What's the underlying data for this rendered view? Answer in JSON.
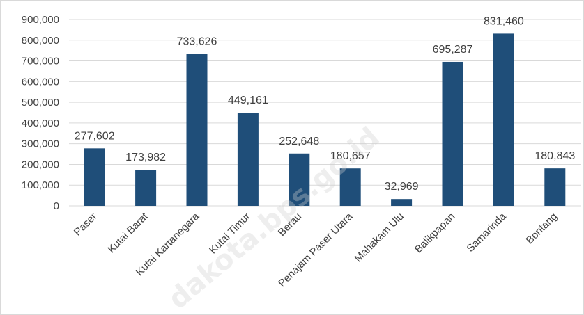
{
  "chart_data": {
    "type": "bar",
    "categories": [
      "Paser",
      "Kutai Barat",
      "Kutai Kartanegara",
      "Kutai Timur",
      "Berau",
      "Penajam Paser Utara",
      "Mahakam Ulu",
      "Balikpapan",
      "Samarinda",
      "Bontang"
    ],
    "values": [
      277602,
      173982,
      733626,
      449161,
      252648,
      180657,
      32969,
      695287,
      831460,
      180843
    ],
    "data_labels": [
      "277,602",
      "173,982",
      "733,626",
      "449,161",
      "252,648",
      "180,657",
      "32,969",
      "695,287",
      "831,460",
      "180,843"
    ],
    "y_ticks": [
      "0",
      "100,000",
      "200,000",
      "300,000",
      "400,000",
      "500,000",
      "600,000",
      "700,000",
      "800,000",
      "900,000"
    ],
    "ylim": [
      0,
      900000
    ],
    "title": "",
    "xlabel": "",
    "ylabel": "",
    "grid": true,
    "legend": "none",
    "bar_color": "#1f4e79",
    "gridline_color": "#d9d9d9"
  },
  "watermark": "dakota.bps.go.id"
}
